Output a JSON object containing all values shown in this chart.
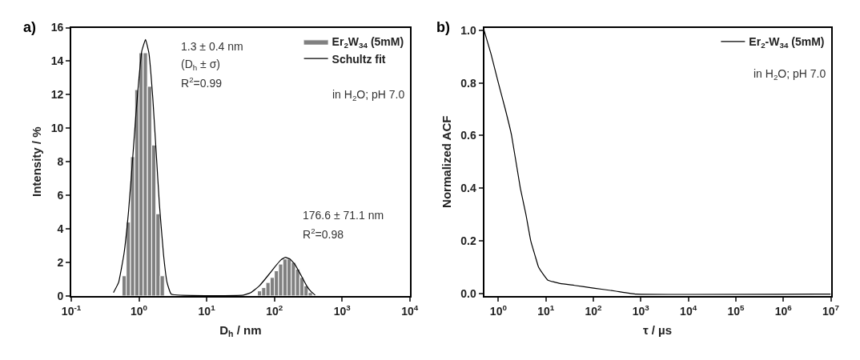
{
  "chart_data": [
    {
      "type": "histogram",
      "title": "a)",
      "xlabel": "D$_{h}$ / nm",
      "ylabel": "Intensity / %",
      "log": "x",
      "legend": "top right",
      "bins": [
        0.562,
        0.649,
        0.75,
        0.866,
        1.0,
        1.155,
        1.334,
        1.54,
        1.778,
        2.054,
        2.371,
        2.738,
        3.162,
        3.652,
        4.217,
        4.87,
        5.623,
        6.494,
        7.499,
        8.66,
        10.0,
        11.55,
        13.34,
        15.4,
        17.78,
        20.54,
        23.71,
        27.38,
        31.62,
        36.52,
        42.17,
        48.7,
        56.23,
        64.94,
        74.99,
        86.6,
        100.0,
        115.5,
        133.4,
        154.0,
        177.8,
        205.4,
        237.1,
        273.8,
        316.2,
        365.2
      ],
      "series": [
        {
          "name": "Er$_{2}$W$_{34}$ (5mM)",
          "color": "#808080",
          "values": [
            1.2,
            4.4,
            8.3,
            12.3,
            14.5,
            14.5,
            12.5,
            9.0,
            4.9,
            1.2,
            0,
            0,
            0,
            0,
            0,
            0,
            0,
            0,
            0,
            0,
            0,
            0,
            0,
            0,
            0,
            0,
            0,
            0,
            0,
            0,
            0,
            0,
            0.3,
            0.5,
            0.8,
            1.1,
            1.5,
            1.9,
            2.2,
            2.2,
            2.0,
            1.6,
            1.1,
            0.6,
            0.2
          ]
        },
        {
          "name": "Schultz fit",
          "type": "line",
          "color": "#000000",
          "x": [
            0.42,
            0.5,
            0.6,
            0.7,
            0.8,
            0.9,
            1.0,
            1.1,
            1.25,
            1.4,
            1.6,
            1.8,
            2.0,
            2.3,
            2.6,
            3.0,
            35,
            45,
            60,
            80,
            100,
            125,
            145,
            170,
            200,
            250,
            300,
            350,
            400
          ],
          "values": [
            0.2,
            0.8,
            2.5,
            5.0,
            8.0,
            10.8,
            13.0,
            14.6,
            15.3,
            14.5,
            11.8,
            8.5,
            5.5,
            2.5,
            0.8,
            0.1,
            0.05,
            0.2,
            0.6,
            1.2,
            1.7,
            2.15,
            2.3,
            2.2,
            1.9,
            1.2,
            0.6,
            0.25,
            0.05
          ]
        }
      ],
      "xlim": [
        0.1,
        10000
      ],
      "xticks": [
        {
          "value": 0.1,
          "label": "10$^{-1}$"
        },
        {
          "value": 1,
          "label": "10$^{0}$"
        },
        {
          "value": 10,
          "label": "10$^{1}$"
        },
        {
          "value": 100,
          "label": "10$^{2}$"
        },
        {
          "value": 1000,
          "label": "10$^{3}$"
        },
        {
          "value": 10000,
          "label": "10$^{4}$"
        }
      ],
      "ylim": [
        0,
        16
      ],
      "yticks": [
        0,
        2,
        4,
        6,
        8,
        10,
        12,
        14,
        16
      ],
      "annotations": [
        "1.3 ± 0.4 nm",
        "(D$_{h}$ ± σ)",
        "R$^{2}$=0.99",
        "176.6 ± 71.1 nm",
        "R$^{2}$=0.98",
        "in H$_{2}$O; pH 7.0"
      ]
    },
    {
      "type": "line",
      "title": "b)",
      "xlabel": "τ / µs",
      "ylabel": "Normalized ACF",
      "log": "x",
      "legend": "top right",
      "series": [
        {
          "name": "Er$_{2}$-W$_{34}$ (5mM)",
          "color": "#000000",
          "x": [
            0.5,
            0.7,
            1.0,
            1.4,
            1.9,
            2.9,
            3.8,
            4.8,
            6,
            7,
            9,
            11,
            20,
            40,
            100,
            300,
            800,
            10000000
          ],
          "values": [
            1.0,
            0.91,
            0.8,
            0.7,
            0.6,
            0.4,
            0.3,
            0.2,
            0.14,
            0.1,
            0.07,
            0.05,
            0.037,
            0.03,
            0.02,
            0.008,
            -0.003,
            -0.003
          ]
        }
      ],
      "xlim": [
        0.5,
        10000000
      ],
      "xticks": [
        {
          "value": 1,
          "label": "10$^{0}$"
        },
        {
          "value": 10,
          "label": "10$^{1}$"
        },
        {
          "value": 100,
          "label": "10$^{2}$"
        },
        {
          "value": 1000,
          "label": "10$^{3}$"
        },
        {
          "value": 10000,
          "label": "10$^{4}$"
        },
        {
          "value": 100000,
          "label": "10$^{5}$"
        },
        {
          "value": 1000000,
          "label": "10$^{6}$"
        },
        {
          "value": 10000000,
          "label": "10$^{7}$"
        }
      ],
      "ylim": [
        -0.01,
        1.01
      ],
      "yticks": [
        {
          "value": 0,
          "label": "0.0"
        },
        {
          "value": 0.2,
          "label": "0.2"
        },
        {
          "value": 0.4,
          "label": "0.4"
        },
        {
          "value": 0.6,
          "label": "0.6"
        },
        {
          "value": 0.8,
          "label": "0.8"
        },
        {
          "value": 1.0,
          "label": "1.0"
        }
      ],
      "annotations": [
        "in H$_{2}$O; pH 7.0"
      ]
    }
  ]
}
